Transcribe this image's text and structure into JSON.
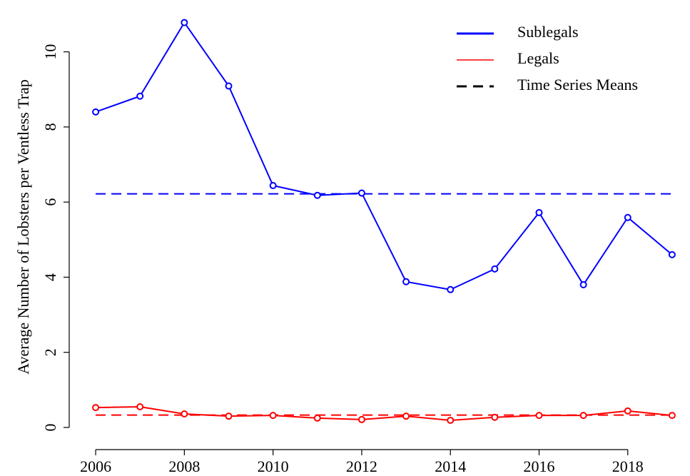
{
  "chart_data": {
    "type": "line",
    "y_label": "Average Number of Lobsters per Ventless Trap",
    "x": [
      2006,
      2007,
      2008,
      2009,
      2010,
      2011,
      2012,
      2013,
      2014,
      2015,
      2016,
      2017,
      2018,
      2019
    ],
    "series": [
      {
        "name": "Sublegals",
        "color": "#0000ff",
        "values": [
          8.4,
          8.82,
          10.78,
          9.09,
          6.44,
          6.18,
          6.24,
          3.88,
          3.67,
          4.22,
          5.72,
          3.8,
          5.59,
          4.6
        ]
      },
      {
        "name": "Legals",
        "color": "#ff0000",
        "values": [
          0.53,
          0.55,
          0.36,
          0.3,
          0.32,
          0.25,
          0.21,
          0.3,
          0.19,
          0.27,
          0.32,
          0.32,
          0.44,
          0.32
        ]
      }
    ],
    "reference_lines": {
      "name": "Time Series Means",
      "color": "#000000",
      "values": [
        6.22,
        0.33
      ]
    },
    "xlim": [
      2005.5,
      2019.5
    ],
    "xticks": [
      2006,
      2008,
      2010,
      2012,
      2014,
      2016,
      2018
    ],
    "ylim": [
      -0.2,
      11.0
    ],
    "yticks": [
      0,
      2,
      4,
      6,
      8,
      10
    ],
    "legend": "top-right",
    "grid": false
  }
}
